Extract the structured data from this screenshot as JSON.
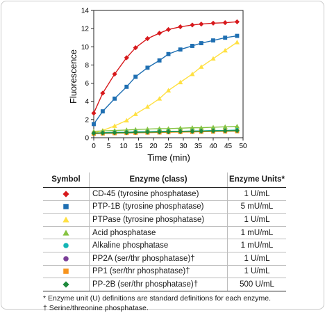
{
  "chart_data": {
    "type": "line",
    "xlabel": "Time (min)",
    "ylabel": "Fluorescence",
    "xlim": [
      0,
      50
    ],
    "ylim": [
      0,
      14
    ],
    "xticks": [
      "0",
      "5",
      "10",
      "15",
      "20",
      "25",
      "30",
      "35",
      "40",
      "45",
      "50"
    ],
    "yticks": [
      "0",
      "2",
      "4",
      "6",
      "8",
      "10",
      "12",
      "14"
    ],
    "grid": false,
    "x": [
      0,
      3,
      7,
      11,
      14,
      18,
      22,
      25,
      29,
      33,
      36,
      40,
      44,
      48
    ],
    "series": [
      {
        "name": "CD-45",
        "color": "#d7191c",
        "marker": "diamond",
        "values": [
          2.7,
          4.9,
          7.0,
          8.8,
          9.9,
          10.9,
          11.5,
          11.9,
          12.2,
          12.4,
          12.5,
          12.6,
          12.65,
          12.75
        ]
      },
      {
        "name": "PTP-1B",
        "color": "#1f6fb2",
        "marker": "square",
        "values": [
          1.5,
          2.9,
          4.3,
          5.6,
          6.7,
          7.7,
          8.5,
          9.2,
          9.7,
          10.1,
          10.4,
          10.7,
          11.0,
          11.2
        ]
      },
      {
        "name": "PTPase",
        "color": "#ffe042",
        "marker": "triangle-up",
        "values": [
          0.5,
          0.8,
          1.3,
          1.9,
          2.6,
          3.4,
          4.3,
          5.2,
          6.1,
          7.0,
          7.8,
          8.7,
          9.6,
          10.5
        ]
      },
      {
        "name": "Acid phosphatase",
        "color": "#86c341",
        "marker": "triangle-up",
        "values": [
          0.7,
          0.75,
          0.8,
          0.85,
          0.9,
          0.95,
          1.0,
          1.0,
          1.05,
          1.1,
          1.1,
          1.15,
          1.2,
          1.25
        ]
      },
      {
        "name": "Alkaline phosphatase",
        "color": "#14b5b5",
        "marker": "circle",
        "values": [
          0.5,
          0.55,
          0.6,
          0.6,
          0.65,
          0.65,
          0.7,
          0.7,
          0.7,
          0.75,
          0.75,
          0.8,
          0.8,
          0.85
        ]
      },
      {
        "name": "PP2A",
        "color": "#7b3f98",
        "marker": "circle",
        "values": [
          0.45,
          0.48,
          0.5,
          0.52,
          0.55,
          0.57,
          0.6,
          0.62,
          0.64,
          0.66,
          0.68,
          0.7,
          0.72,
          0.74
        ]
      },
      {
        "name": "PP1",
        "color": "#f7941d",
        "marker": "square",
        "values": [
          0.45,
          0.47,
          0.5,
          0.52,
          0.54,
          0.56,
          0.58,
          0.6,
          0.62,
          0.64,
          0.66,
          0.68,
          0.7,
          0.72
        ]
      },
      {
        "name": "PP-2B",
        "color": "#1e8a3c",
        "marker": "diamond",
        "values": [
          0.5,
          0.52,
          0.55,
          0.57,
          0.6,
          0.62,
          0.64,
          0.66,
          0.68,
          0.7,
          0.72,
          0.74,
          0.76,
          0.78
        ]
      }
    ]
  },
  "table": {
    "headers": {
      "symbol": "Symbol",
      "enzyme": "Enzyme (class)",
      "units": "Enzyme Units*"
    },
    "rows": [
      {
        "enzyme": "CD-45 (tyrosine phosphatase)",
        "units": "1 U/mL",
        "color": "#d7191c",
        "marker": "diamond"
      },
      {
        "enzyme": "PTP-1B (tyrosine phosphatase)",
        "units": "5 mU/mL",
        "color": "#1f6fb2",
        "marker": "square"
      },
      {
        "enzyme": "PTPase (tyrosine phosphatase)",
        "units": "1 U/mL",
        "color": "#ffe042",
        "marker": "triangle-up"
      },
      {
        "enzyme": "Acid phosphatase",
        "units": "1 mU/mL",
        "color": "#86c341",
        "marker": "triangle-up"
      },
      {
        "enzyme": "Alkaline phosphatase",
        "units": "1 mU/mL",
        "color": "#14b5b5",
        "marker": "circle"
      },
      {
        "enzyme": "PP2A (ser/thr phosphatase)†",
        "units": "1 U/mL",
        "color": "#7b3f98",
        "marker": "circle"
      },
      {
        "enzyme": "PP1 (ser/thr phosphatase)†",
        "units": "1 U/mL",
        "color": "#f7941d",
        "marker": "square"
      },
      {
        "enzyme": "PP-2B (ser/thr phosphatase)†",
        "units": "500 U/mL",
        "color": "#1e8a3c",
        "marker": "diamond"
      }
    ],
    "footnotes": [
      "* Enzyme unit (U) definitions are standard definitions for each enzyme.",
      "† Serine/threonine phosphatase."
    ]
  }
}
